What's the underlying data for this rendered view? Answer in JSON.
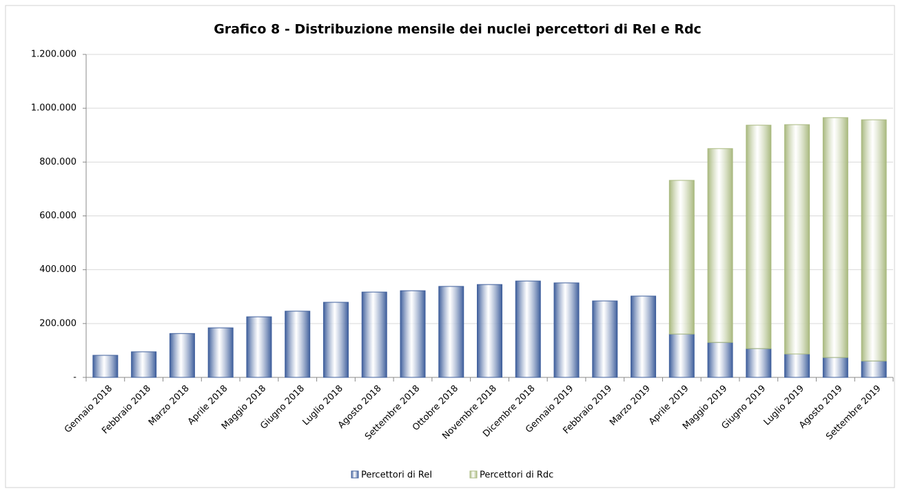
{
  "chart_data": {
    "type": "stacked_bar",
    "title": "Grafico 8 - Distribuzione mensile dei nuclei percettori di ReI e Rdc",
    "categories": [
      "Gennaio 2018",
      "Febbraio 2018",
      "Marzo 2018",
      "Aprile 2018",
      "Maggio 2018",
      "Giugno 2018",
      "Luglio 2018",
      "Agosto 2018",
      "Settembre 2018",
      "Ottobre 2018",
      "Novembre 2018",
      "Dicembre 2018",
      "Gennaio 2019",
      "Febbraio 2019",
      "Marzo 2019",
      "Aprile 2019",
      "Maggio 2019",
      "Giugno 2019",
      "Luglio 2019",
      "Agosto 2019",
      "Settembre 2019"
    ],
    "series": [
      {
        "name": "Percettori di ReI",
        "color": "#3f5f9c",
        "values": [
          82000,
          95000,
          163000,
          184000,
          225000,
          246000,
          279000,
          317000,
          322000,
          338000,
          345000,
          358000,
          351000,
          284000,
          302000,
          161000,
          130000,
          107000,
          87000,
          74000,
          61000
        ]
      },
      {
        "name": "Percettori di Rdc",
        "color": "#a9b97f",
        "values": [
          null,
          null,
          null,
          null,
          null,
          null,
          null,
          null,
          null,
          null,
          null,
          null,
          null,
          null,
          null,
          571000,
          720000,
          830000,
          852000,
          891000,
          896000
        ]
      }
    ],
    "ylim": [
      0,
      1200000
    ],
    "yticks": [
      {
        "value": 0,
        "label": "-"
      },
      {
        "value": 200000,
        "label": "200.000"
      },
      {
        "value": 400000,
        "label": "400.000"
      },
      {
        "value": 600000,
        "label": "600.000"
      },
      {
        "value": 800000,
        "label": "800.000"
      },
      {
        "value": 1000000,
        "label": "1.000.000"
      },
      {
        "value": 1200000,
        "label": "1.200.000"
      }
    ],
    "grid": true
  }
}
